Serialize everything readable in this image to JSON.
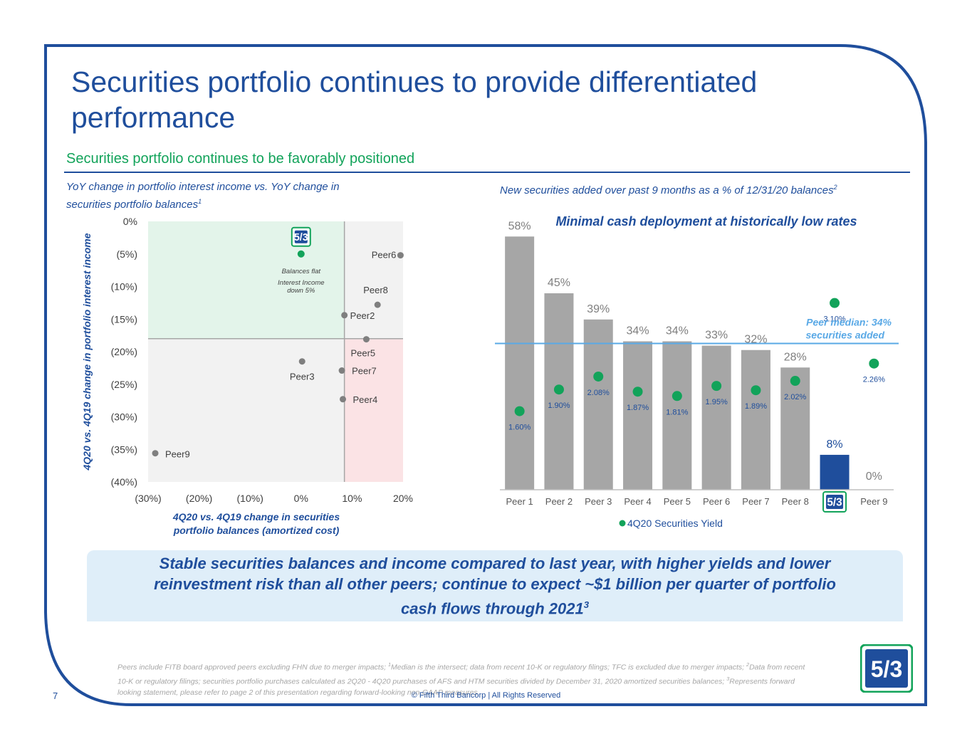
{
  "slide": {
    "title": "Securities portfolio continues to provide differentiated performance",
    "subtitle": "Securities portfolio continues to be favorably positioned",
    "page_number": "7",
    "copyright": "© Fifth Third Bancorp | All Rights Reserved",
    "brand_color": "#1f4e9c",
    "accent_green": "#12a35a"
  },
  "left_panel": {
    "heading_line1": "YoY change in portfolio interest income vs. YoY change in",
    "heading_line2": "securities portfolio balances",
    "heading_sup": "1"
  },
  "right_panel": {
    "heading": "New securities added over past 9 months as a % of 12/31/20 balances",
    "heading_sup": "2"
  },
  "banner": {
    "line1": "Stable securities balances and income compared to last year, with higher yields and lower",
    "line2": "reinvestment risk than all other peers; continue to expect ~$1 billion per quarter of portfolio",
    "line3": "cash flows through 2021",
    "sup": "3"
  },
  "footnote": {
    "p1": "Peers include FITB board approved peers excluding FHN due to merger impacts; ",
    "s1": "1",
    "p2": "Median is the intersect; data from recent 10-K or regulatory filings; TFC is excluded due to merger impacts; ",
    "s2": "2",
    "p3": "Data from recent 10-K or regulatory filings; securities portfolio purchases calculated as 2Q20 - 4Q20 purchases of AFS and HTM securities divided by December 31, 2020 amortized securities balances; ",
    "s3": "3",
    "p4": "Represents forward looking statement, please refer to page 2 of this presentation regarding forward-looking non-GAAP measures"
  },
  "logo_text": "5/3",
  "chart_data": [
    {
      "type": "scatter",
      "xlabel": "4Q20 vs. 4Q19 change in securities portfolio balances (amortized cost)",
      "ylabel": "4Q20 vs. 4Q19 change in portfolio interest income",
      "xlim": [
        -30,
        20
      ],
      "ylim": [
        -40,
        0
      ],
      "x_ticks": [
        "(30%)",
        "(20%)",
        "(10%)",
        "0%",
        "10%",
        "20%"
      ],
      "y_ticks": [
        "0%",
        "(5%)",
        "(10%)",
        "(15%)",
        "(20%)",
        "(25%)",
        "(30%)",
        "(35%)",
        "(40%)"
      ],
      "median": {
        "x": 8.5,
        "y": -18
      },
      "fitb_point": {
        "x": 0,
        "y": -5,
        "color": "#12a35a"
      },
      "annotation_line1": "Balances flat",
      "annotation_line2": "Interest Income",
      "annotation_line3": "down 5%",
      "points": [
        {
          "label": "Peer6",
          "x": 19.5,
          "y": -5.2
        },
        {
          "label": "Peer8",
          "x": 15,
          "y": -12.8
        },
        {
          "label": "Peer2",
          "x": 8.5,
          "y": -14.4
        },
        {
          "label": "Peer5",
          "x": 12.8,
          "y": -18.1
        },
        {
          "label": "Peer3",
          "x": 0.2,
          "y": -21.5
        },
        {
          "label": "Peer7",
          "x": 8,
          "y": -22.9
        },
        {
          "label": "Peer4",
          "x": 8.2,
          "y": -27.3
        },
        {
          "label": "Peer9",
          "x": -28.6,
          "y": -35.6
        }
      ],
      "colors": {
        "green_quadrant": "#e3f4ea",
        "red_quadrant": "#fbe3e5",
        "grey_quadrant": "#f2f2f2",
        "point": "#7f7f7f"
      }
    },
    {
      "type": "bar",
      "title": "Minimal cash deployment at historically low rates",
      "categories": [
        "Peer 1",
        "Peer 2",
        "Peer 3",
        "Peer 4",
        "Peer 5",
        "Peer 6",
        "Peer 7",
        "Peer 8",
        "FITB",
        "Peer 9"
      ],
      "values": [
        58,
        45,
        39,
        34,
        34,
        33,
        32,
        28,
        8,
        0
      ],
      "value_labels": [
        "58%",
        "45%",
        "39%",
        "34%",
        "34%",
        "33%",
        "32%",
        "28%",
        "8%",
        "0%"
      ],
      "ylim": [
        0,
        60
      ],
      "yields": [
        1.6,
        1.9,
        2.08,
        1.87,
        1.81,
        1.95,
        1.89,
        2.02,
        3.1,
        2.26
      ],
      "yield_labels": [
        "1.60%",
        "1.90%",
        "2.08%",
        "1.87%",
        "1.81%",
        "1.95%",
        "1.89%",
        "2.02%",
        "3.10%",
        "2.26%"
      ],
      "yield_scale": [
        0.5,
        3.6
      ],
      "median_value": 34,
      "median_label_line1": "Peer median: 34%",
      "median_label_line2": "securities added",
      "legend": "4Q20 Securities Yield",
      "colors": {
        "bar": "#a6a6a6",
        "fitb_bar": "#1f4e9c",
        "yield": "#12a35a",
        "median": "#5aa9e6"
      }
    }
  ]
}
